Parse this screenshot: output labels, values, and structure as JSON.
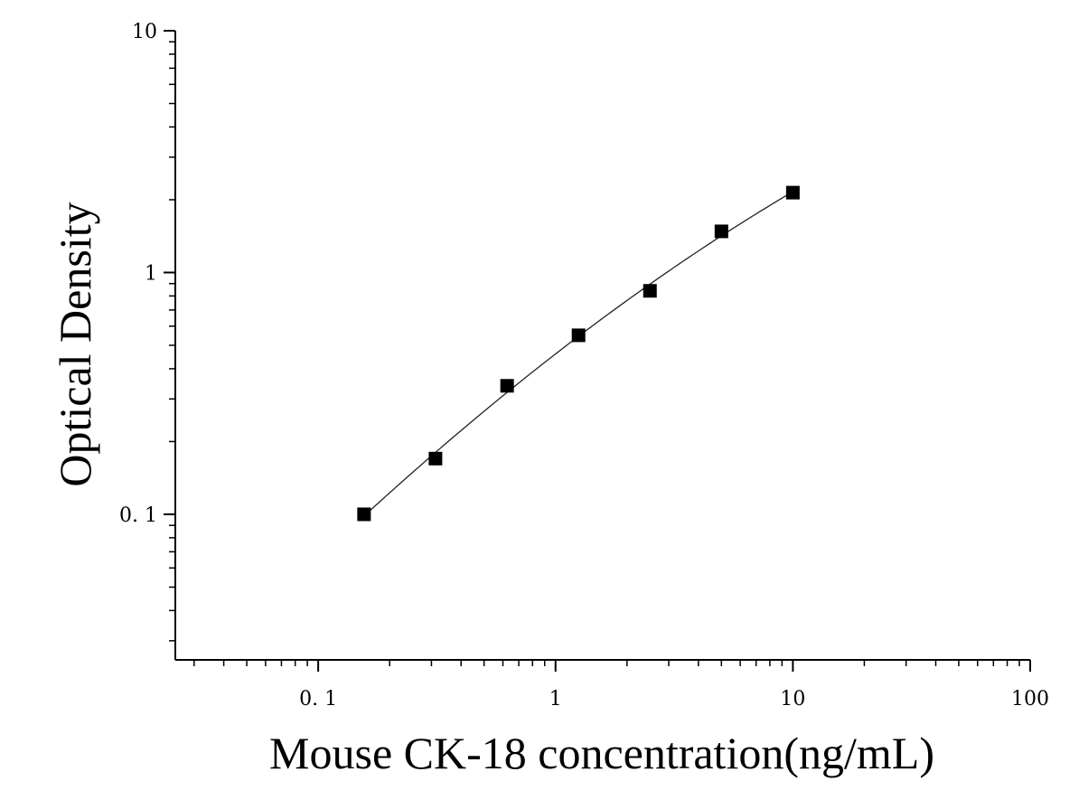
{
  "chart_data": {
    "type": "scatter",
    "xlabel": "Mouse CK-18 concentration(ng/mL)",
    "ylabel": "Optical Density",
    "x_scale": "log",
    "y_scale": "log",
    "xlim": [
      0.025,
      100
    ],
    "ylim": [
      0.025,
      10
    ],
    "x_ticks": [
      {
        "value": 0.1,
        "label": "0. 1"
      },
      {
        "value": 1,
        "label": "1"
      },
      {
        "value": 10,
        "label": "10"
      },
      {
        "value": 100,
        "label": "100"
      }
    ],
    "y_ticks": [
      {
        "value": 0.1,
        "label": "0. 1"
      },
      {
        "value": 1,
        "label": "1"
      },
      {
        "value": 10,
        "label": "10"
      }
    ],
    "grid": false,
    "series": [
      {
        "marker": "square",
        "color": "#000000",
        "x": [
          0.156,
          0.312,
          0.625,
          1.25,
          2.5,
          5,
          10
        ],
        "y": [
          0.1,
          0.17,
          0.34,
          0.55,
          0.84,
          1.48,
          2.14
        ]
      }
    ],
    "fit_curve": {
      "color": "#222222",
      "x_range": [
        0.156,
        10
      ]
    }
  }
}
